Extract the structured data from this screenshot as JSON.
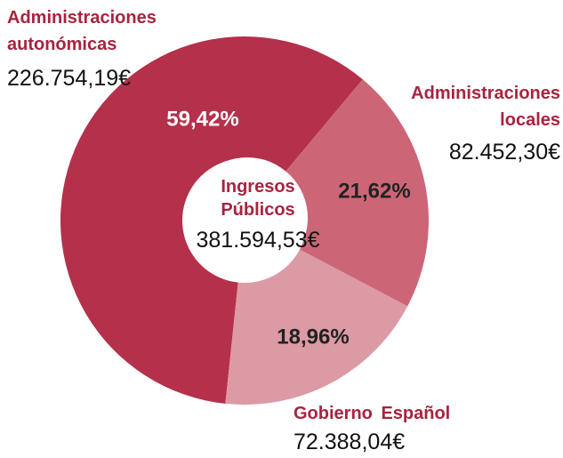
{
  "chart_data": {
    "type": "donut",
    "categories": [
      "Administraciones autonómicas",
      "Administraciones locales",
      "Gobierno Español"
    ],
    "values": [
      59.42,
      21.62,
      18.96
    ],
    "value_labels": [
      "59,42%",
      "21,62%",
      "18,96%"
    ],
    "amounts": [
      "226.754,19€",
      "82.452,30€",
      "72.388,04€"
    ],
    "colors": [
      "#b5304a",
      "#cc6677",
      "#dc9aa4"
    ],
    "center_title": "Ingresos Públicos",
    "center_value": "381.594,53€"
  }
}
